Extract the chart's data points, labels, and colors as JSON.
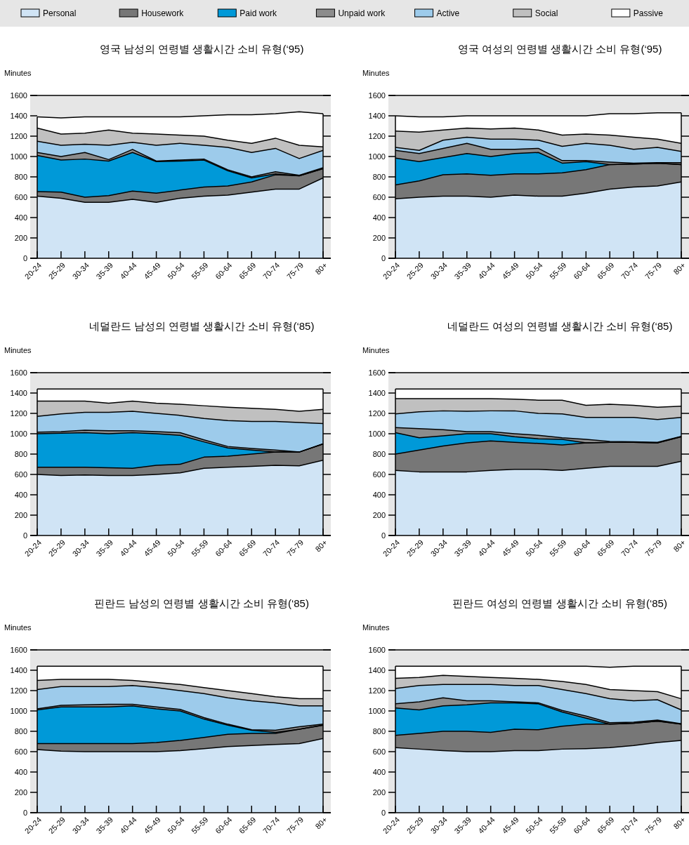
{
  "chart_data": [
    {
      "type": "area",
      "stacked": true,
      "legend": "top",
      "title": "영국 남성의 연령별 생활시간 소비 유형(‘95)",
      "ylabel": "Minutes",
      "categories": [
        "20-24",
        "25-29",
        "30-34",
        "35-39",
        "40-44",
        "45-49",
        "50-54",
        "55-59",
        "60-64",
        "65-69",
        "70-74",
        "75-79",
        "80+"
      ],
      "ylim": [
        0,
        1600
      ],
      "yticks": [
        0,
        200,
        400,
        600,
        800,
        1000,
        1200,
        1400,
        1600
      ],
      "series": [
        {
          "name": "Personal",
          "color": "#d0e4f5",
          "values": [
            610,
            590,
            550,
            550,
            580,
            550,
            590,
            610,
            620,
            650,
            680,
            680,
            790
          ]
        },
        {
          "name": "Housework",
          "color": "#777777",
          "values": [
            45,
            60,
            50,
            65,
            80,
            90,
            80,
            90,
            90,
            100,
            140,
            130,
            90
          ]
        },
        {
          "name": "Paid work",
          "color": "#0099d8",
          "values": [
            355,
            315,
            375,
            340,
            380,
            310,
            285,
            265,
            150,
            40,
            10,
            0,
            0
          ]
        },
        {
          "name": "Unpaid work",
          "color": "#8c8c8c",
          "values": [
            30,
            35,
            65,
            15,
            30,
            5,
            10,
            10,
            10,
            10,
            20,
            5,
            10
          ]
        },
        {
          "name": "Active",
          "color": "#9dcbeb",
          "values": [
            110,
            110,
            80,
            140,
            70,
            155,
            165,
            135,
            220,
            240,
            230,
            165,
            170
          ]
        },
        {
          "name": "Social",
          "color": "#c0c0c0",
          "values": [
            130,
            110,
            110,
            150,
            90,
            110,
            80,
            90,
            70,
            90,
            100,
            130,
            35
          ]
        },
        {
          "name": "Passive",
          "color": "#ffffff",
          "values": [
            110,
            160,
            160,
            130,
            160,
            170,
            180,
            200,
            250,
            280,
            240,
            330,
            325
          ]
        }
      ]
    },
    {
      "type": "area",
      "stacked": true,
      "title": "영국 여성의 연령별 생활시간 소비 유형(‘95)",
      "ylabel": "Minutes",
      "categories": [
        "20-24",
        "25-29",
        "30-34",
        "35-39",
        "40-44",
        "45-49",
        "50-54",
        "55-59",
        "60-64",
        "65-69",
        "70-74",
        "75-79",
        "80+"
      ],
      "ylim": [
        0,
        1600
      ],
      "yticks": [
        0,
        200,
        400,
        600,
        800,
        1000,
        1200,
        1400,
        1600
      ],
      "series": [
        {
          "color": "#d0e4f5",
          "values": [
            585,
            600,
            610,
            610,
            600,
            620,
            610,
            610,
            640,
            680,
            700,
            710,
            750
          ]
        },
        {
          "color": "#777777",
          "values": [
            135,
            160,
            210,
            220,
            215,
            210,
            220,
            230,
            230,
            240,
            225,
            225,
            170
          ]
        },
        {
          "color": "#0099d8",
          "values": [
            265,
            190,
            170,
            200,
            185,
            200,
            210,
            95,
            80,
            0,
            0,
            0,
            0
          ]
        },
        {
          "color": "#8c8c8c",
          "values": [
            75,
            80,
            90,
            100,
            70,
            40,
            40,
            25,
            10,
            25,
            10,
            5,
            20
          ]
        },
        {
          "color": "#9dcbeb",
          "values": [
            30,
            30,
            80,
            60,
            100,
            100,
            80,
            140,
            170,
            165,
            135,
            150,
            110
          ]
        },
        {
          "color": "#c0c0c0",
          "values": [
            160,
            180,
            100,
            90,
            100,
            110,
            100,
            110,
            90,
            100,
            120,
            80,
            80
          ]
        },
        {
          "color": "#ffffff",
          "values": [
            150,
            150,
            130,
            120,
            130,
            120,
            140,
            190,
            180,
            210,
            230,
            260,
            300
          ]
        }
      ]
    },
    {
      "type": "area",
      "stacked": true,
      "title": "네덜란드 남성의 연령별 생활시간 소비 유형(‘85)",
      "ylabel": "Minutes",
      "categories": [
        "20-24",
        "25-29",
        "30-34",
        "35-39",
        "40-44",
        "45-49",
        "50-54",
        "55-59",
        "60-64",
        "65-69",
        "70-74",
        "75-79",
        "80+"
      ],
      "ylim": [
        0,
        1600
      ],
      "yticks": [
        0,
        200,
        400,
        600,
        800,
        1000,
        1200,
        1400,
        1600
      ],
      "series": [
        {
          "color": "#d0e4f5",
          "values": [
            600,
            590,
            595,
            590,
            590,
            600,
            615,
            660,
            670,
            680,
            690,
            685,
            740
          ]
        },
        {
          "color": "#777777",
          "values": [
            70,
            80,
            75,
            75,
            70,
            90,
            85,
            110,
            110,
            120,
            130,
            135,
            160
          ]
        },
        {
          "color": "#0099d8",
          "values": [
            330,
            335,
            340,
            335,
            350,
            310,
            285,
            150,
            80,
            40,
            0,
            0,
            0
          ]
        },
        {
          "color": "#8c8c8c",
          "values": [
            15,
            15,
            25,
            30,
            20,
            20,
            25,
            20,
            15,
            15,
            20,
            0,
            0
          ]
        },
        {
          "color": "#9dcbeb",
          "values": [
            155,
            175,
            175,
            180,
            190,
            180,
            170,
            210,
            255,
            265,
            280,
            290,
            200
          ]
        },
        {
          "color": "#c0c0c0",
          "values": [
            150,
            125,
            110,
            90,
            100,
            100,
            110,
            125,
            130,
            130,
            120,
            110,
            140
          ]
        },
        {
          "color": "#ffffff",
          "values": [
            120,
            120,
            120,
            140,
            120,
            140,
            150,
            165,
            180,
            190,
            200,
            220,
            200
          ]
        }
      ]
    },
    {
      "type": "area",
      "stacked": true,
      "title": "네덜란드 여성의 연령별 생활시간 소비 유형(‘85)",
      "ylabel": "Minutes",
      "categories": [
        "20-24",
        "25-29",
        "30-34",
        "35-39",
        "40-44",
        "45-49",
        "50-54",
        "55-59",
        "60-64",
        "65-69",
        "70-74",
        "75-79",
        "80+"
      ],
      "ylim": [
        0,
        1600
      ],
      "yticks": [
        0,
        200,
        400,
        600,
        800,
        1000,
        1200,
        1400,
        1600
      ],
      "series": [
        {
          "color": "#d0e4f5",
          "values": [
            640,
            625,
            625,
            625,
            640,
            650,
            650,
            640,
            660,
            680,
            680,
            680,
            730
          ]
        },
        {
          "color": "#777777",
          "values": [
            160,
            215,
            255,
            285,
            290,
            265,
            255,
            250,
            250,
            235,
            235,
            230,
            240
          ]
        },
        {
          "color": "#0099d8",
          "values": [
            210,
            120,
            100,
            90,
            70,
            55,
            45,
            55,
            0,
            0,
            0,
            0,
            0
          ]
        },
        {
          "color": "#8c8c8c",
          "values": [
            50,
            90,
            60,
            20,
            20,
            30,
            35,
            15,
            35,
            10,
            5,
            5,
            5
          ]
        },
        {
          "color": "#9dcbeb",
          "values": [
            135,
            165,
            185,
            200,
            205,
            225,
            215,
            235,
            215,
            235,
            240,
            225,
            185
          ]
        },
        {
          "color": "#c0c0c0",
          "values": [
            150,
            130,
            120,
            125,
            120,
            115,
            130,
            135,
            120,
            130,
            120,
            120,
            110
          ]
        },
        {
          "color": "#ffffff",
          "values": [
            95,
            95,
            95,
            95,
            95,
            100,
            110,
            110,
            160,
            150,
            160,
            180,
            170
          ]
        }
      ]
    },
    {
      "type": "area",
      "stacked": true,
      "title": "핀란드 남성의 연령별 생활시간 소비 유형(‘85)",
      "ylabel": "Minutes",
      "categories": [
        "20-24",
        "25-29",
        "30-34",
        "35-39",
        "40-44",
        "45-49",
        "50-54",
        "55-59",
        "60-64",
        "65-69",
        "70-74",
        "75-79",
        "80+"
      ],
      "ylim": [
        0,
        1600
      ],
      "yticks": [
        0,
        200,
        400,
        600,
        800,
        1000,
        1200,
        1400,
        1600
      ],
      "series": [
        {
          "color": "#d0e4f5",
          "values": [
            620,
            605,
            600,
            600,
            600,
            600,
            610,
            630,
            650,
            660,
            670,
            680,
            730
          ]
        },
        {
          "color": "#777777",
          "values": [
            60,
            75,
            80,
            80,
            80,
            90,
            100,
            110,
            120,
            120,
            110,
            140,
            130
          ]
        },
        {
          "color": "#0099d8",
          "values": [
            330,
            360,
            360,
            360,
            370,
            330,
            290,
            180,
            90,
            30,
            10,
            0,
            0
          ]
        },
        {
          "color": "#8c8c8c",
          "values": [
            10,
            15,
            20,
            25,
            15,
            20,
            15,
            15,
            10,
            5,
            20,
            25,
            10
          ]
        },
        {
          "color": "#9dcbeb",
          "values": [
            190,
            185,
            180,
            175,
            185,
            190,
            185,
            235,
            260,
            285,
            270,
            205,
            180
          ]
        },
        {
          "color": "#c0c0c0",
          "values": [
            90,
            70,
            70,
            70,
            50,
            50,
            60,
            60,
            70,
            70,
            60,
            70,
            70
          ]
        },
        {
          "color": "#ffffff",
          "values": [
            140,
            130,
            130,
            130,
            140,
            160,
            180,
            210,
            240,
            270,
            300,
            320,
            320
          ]
        }
      ]
    },
    {
      "type": "area",
      "stacked": true,
      "title": "핀란드 여성의 연령별 생활시간 소비 유형(‘85)",
      "ylabel": "Minutes",
      "categories": [
        "20-24",
        "25-29",
        "30-34",
        "35-39",
        "40-44",
        "45-49",
        "50-54",
        "55-59",
        "60-64",
        "65-69",
        "70-74",
        "75-79",
        "80+"
      ],
      "ylim": [
        0,
        1600
      ],
      "yticks": [
        0,
        200,
        400,
        600,
        800,
        1000,
        1200,
        1400,
        1600
      ],
      "series": [
        {
          "color": "#d0e4f5",
          "values": [
            640,
            625,
            610,
            600,
            600,
            610,
            610,
            625,
            630,
            640,
            660,
            690,
            710
          ]
        },
        {
          "color": "#777777",
          "values": [
            120,
            155,
            190,
            200,
            190,
            210,
            205,
            225,
            240,
            230,
            220,
            210,
            160
          ]
        },
        {
          "color": "#0099d8",
          "values": [
            270,
            230,
            250,
            260,
            290,
            260,
            255,
            140,
            60,
            0,
            0,
            0,
            0
          ]
        },
        {
          "color": "#8c8c8c",
          "values": [
            40,
            80,
            80,
            40,
            20,
            10,
            10,
            15,
            20,
            15,
            10,
            10,
            5
          ]
        },
        {
          "color": "#9dcbeb",
          "values": [
            150,
            160,
            130,
            160,
            160,
            160,
            170,
            205,
            220,
            235,
            210,
            200,
            135
          ]
        },
        {
          "color": "#c0c0c0",
          "values": [
            100,
            80,
            90,
            80,
            70,
            70,
            60,
            80,
            90,
            90,
            100,
            80,
            110
          ]
        },
        {
          "color": "#ffffff",
          "values": [
            120,
            110,
            90,
            100,
            110,
            120,
            130,
            150,
            180,
            220,
            240,
            250,
            320
          ]
        }
      ]
    }
  ]
}
